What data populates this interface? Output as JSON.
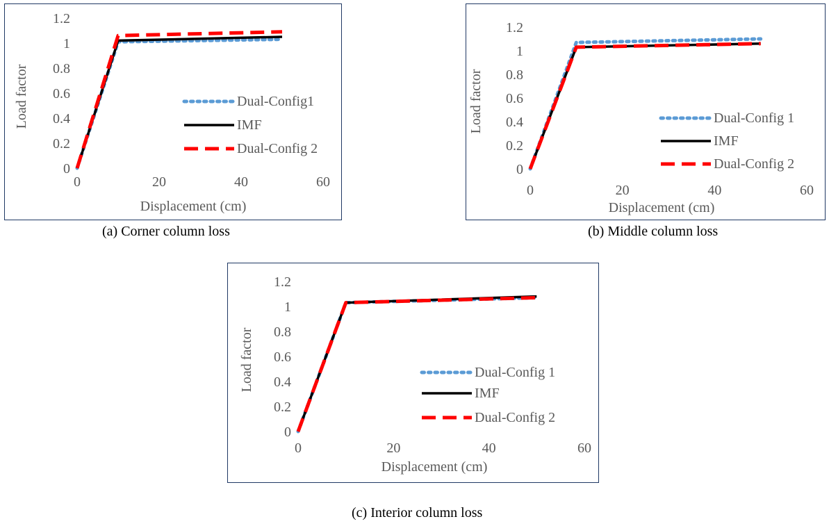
{
  "chart_data": [
    {
      "type": "line",
      "caption": "(a) Corner column loss",
      "xlabel": "Displacement (cm)",
      "ylabel": "Load factor",
      "xlim": [
        0,
        60
      ],
      "ylim": [
        0,
        1.2
      ],
      "xticks": [
        "0",
        "20",
        "40",
        "60"
      ],
      "yticks": [
        "0",
        "0.2",
        "0.4",
        "0.6",
        "0.8",
        "1",
        "1.2"
      ],
      "grid": false,
      "legend_position": "right",
      "series": [
        {
          "name": "Dual-Config1",
          "color": "#5b9bd5",
          "style": "dotted",
          "x": [
            0,
            10,
            50
          ],
          "y": [
            0,
            1.01,
            1.03
          ]
        },
        {
          "name": "IMF",
          "color": "#000000",
          "style": "solid",
          "x": [
            0,
            10,
            50
          ],
          "y": [
            0,
            1.02,
            1.05
          ]
        },
        {
          "name": "Dual-Config 2",
          "color": "#ff0000",
          "style": "dashed",
          "x": [
            0,
            10,
            50
          ],
          "y": [
            0,
            1.06,
            1.09
          ]
        }
      ]
    },
    {
      "type": "line",
      "caption": "(b) Middle column loss",
      "xlabel": "Displacement (cm)",
      "ylabel": "Load factor",
      "xlim": [
        0,
        60
      ],
      "ylim": [
        0,
        1.2
      ],
      "xticks": [
        "0",
        "20",
        "40",
        "60"
      ],
      "yticks": [
        "0",
        "0.2",
        "0.4",
        "0.6",
        "0.8",
        "1",
        "1.2"
      ],
      "grid": false,
      "legend_position": "right",
      "series": [
        {
          "name": "Dual-Config 1",
          "color": "#5b9bd5",
          "style": "dotted",
          "x": [
            0,
            10,
            50
          ],
          "y": [
            0,
            1.07,
            1.1
          ]
        },
        {
          "name": "IMF",
          "color": "#000000",
          "style": "solid",
          "x": [
            0,
            10,
            50
          ],
          "y": [
            0,
            1.03,
            1.06
          ]
        },
        {
          "name": "Dual-Config 2",
          "color": "#ff0000",
          "style": "dashed",
          "x": [
            0,
            10,
            50
          ],
          "y": [
            0,
            1.03,
            1.06
          ]
        }
      ]
    },
    {
      "type": "line",
      "caption": "(c) Interior column loss",
      "xlabel": "Displacement (cm)",
      "ylabel": "Load factor",
      "xlim": [
        0,
        60
      ],
      "ylim": [
        0,
        1.2
      ],
      "xticks": [
        "0",
        "20",
        "40",
        "60"
      ],
      "yticks": [
        "0",
        "0.2",
        "0.4",
        "0.6",
        "0.8",
        "1",
        "1.2"
      ],
      "grid": false,
      "legend_position": "right",
      "series": [
        {
          "name": "Dual-Config 1",
          "color": "#5b9bd5",
          "style": "dotted",
          "x": [
            0,
            10,
            50
          ],
          "y": [
            0,
            1.03,
            1.07
          ]
        },
        {
          "name": "IMF",
          "color": "#000000",
          "style": "solid",
          "x": [
            0,
            10,
            50
          ],
          "y": [
            0,
            1.03,
            1.08
          ]
        },
        {
          "name": "Dual-Config 2",
          "color": "#ff0000",
          "style": "dashed",
          "x": [
            0,
            10,
            50
          ],
          "y": [
            0,
            1.03,
            1.07
          ]
        }
      ]
    }
  ]
}
